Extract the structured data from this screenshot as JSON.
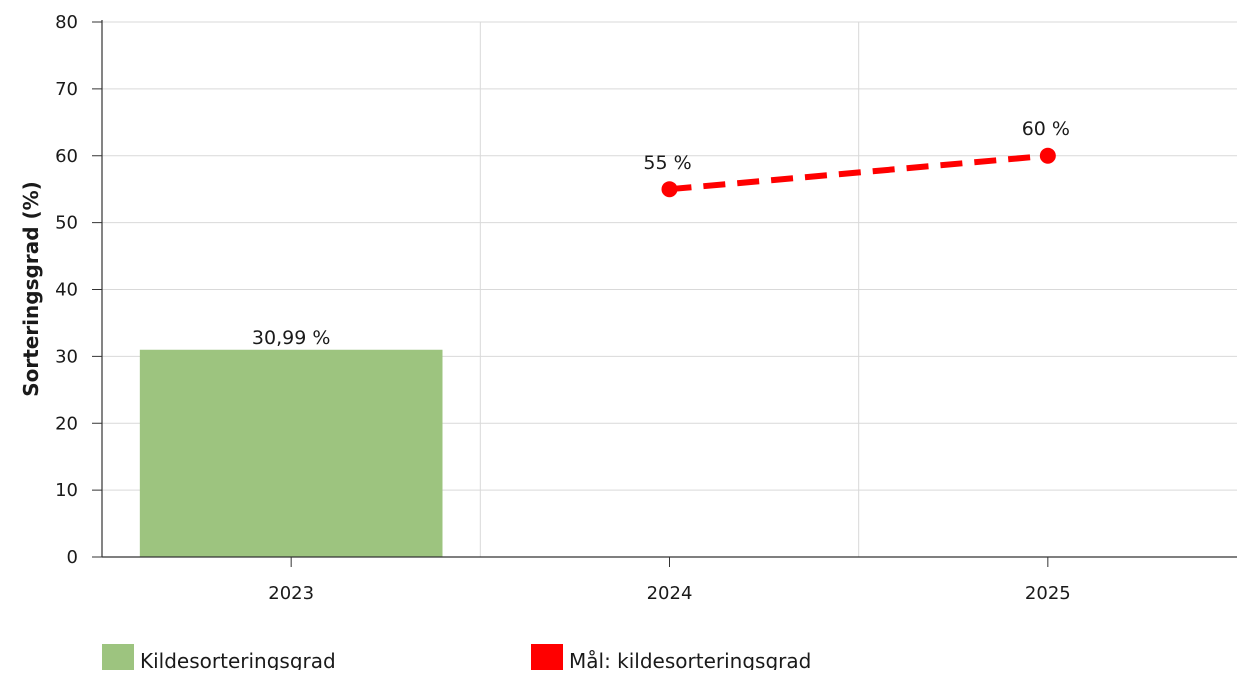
{
  "chart_data": {
    "type": "bar",
    "categories": [
      "2023",
      "2024",
      "2025"
    ],
    "series": [
      {
        "name": "Kildesorteringsgrad",
        "kind": "bar",
        "color": "#9dc47f",
        "values": [
          30.99,
          null,
          null
        ],
        "labels": [
          "30,99 %",
          "",
          ""
        ]
      },
      {
        "name": "Mål: kildesorteringsgrad",
        "kind": "line",
        "style": "dashed",
        "color": "#ff0000",
        "values": [
          null,
          55,
          60
        ],
        "labels": [
          "",
          "55 %",
          "60 %"
        ]
      }
    ],
    "title": "",
    "xlabel": "",
    "ylabel": "Sorteringsgrad (%)",
    "ylim": [
      0,
      80
    ],
    "yticks": [
      0,
      10,
      20,
      30,
      40,
      50,
      60,
      70,
      80
    ],
    "grid": true,
    "legend_position": "bottom"
  }
}
